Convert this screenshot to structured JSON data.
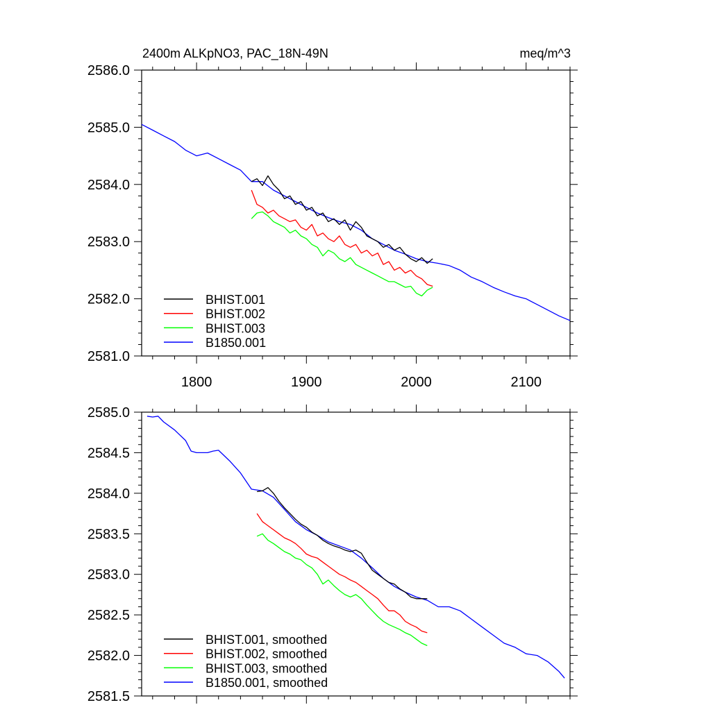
{
  "chart_data": [
    {
      "type": "line",
      "title_left": "2400m ALKpNO3, PAC_18N-49N",
      "title_right": "meq/m^3",
      "xlim": [
        1750,
        2140
      ],
      "ylim": [
        2581.0,
        2586.0
      ],
      "x_ticks": [
        1800,
        1900,
        2000,
        2100
      ],
      "x_tick_labels": [
        "1800",
        "1900",
        "2000",
        "2100"
      ],
      "y_ticks": [
        2581.0,
        2582.0,
        2583.0,
        2584.0,
        2585.0,
        2586.0
      ],
      "y_tick_labels": [
        "2581.0",
        "2582.0",
        "2583.0",
        "2584.0",
        "2585.0",
        "2586.0"
      ],
      "legend_position": "bottom-left",
      "series": [
        {
          "name": "BHIST.001",
          "color": "#000000",
          "x": [
            1850,
            1855,
            1860,
            1865,
            1870,
            1875,
            1880,
            1885,
            1890,
            1895,
            1900,
            1905,
            1910,
            1915,
            1920,
            1925,
            1930,
            1935,
            1940,
            1945,
            1950,
            1955,
            1960,
            1965,
            1970,
            1975,
            1980,
            1985,
            1990,
            1995,
            2000,
            2005,
            2010,
            2015
          ],
          "y": [
            2584.05,
            2584.1,
            2583.98,
            2584.15,
            2584.0,
            2583.9,
            2583.75,
            2583.8,
            2583.65,
            2583.7,
            2583.55,
            2583.6,
            2583.45,
            2583.5,
            2583.35,
            2583.4,
            2583.3,
            2583.38,
            2583.2,
            2583.35,
            2583.25,
            2583.1,
            2583.05,
            2583.0,
            2582.9,
            2582.95,
            2582.85,
            2582.9,
            2582.78,
            2582.7,
            2582.65,
            2582.72,
            2582.62,
            2582.7
          ]
        },
        {
          "name": "BHIST.002",
          "color": "#ff0000",
          "x": [
            1850,
            1855,
            1860,
            1865,
            1870,
            1875,
            1880,
            1885,
            1890,
            1895,
            1900,
            1905,
            1910,
            1915,
            1920,
            1925,
            1930,
            1935,
            1940,
            1945,
            1950,
            1955,
            1960,
            1965,
            1970,
            1975,
            1980,
            1985,
            1990,
            1995,
            2000,
            2005,
            2010,
            2015
          ],
          "y": [
            2583.9,
            2583.65,
            2583.6,
            2583.5,
            2583.55,
            2583.45,
            2583.4,
            2583.35,
            2583.38,
            2583.25,
            2583.2,
            2583.3,
            2583.1,
            2583.15,
            2583.05,
            2583.0,
            2583.1,
            2582.95,
            2582.9,
            2582.95,
            2582.8,
            2582.85,
            2582.75,
            2582.8,
            2582.6,
            2582.65,
            2582.5,
            2582.55,
            2582.45,
            2582.5,
            2582.4,
            2582.35,
            2582.25,
            2582.22
          ]
        },
        {
          "name": "BHIST.003",
          "color": "#00ff00",
          "x": [
            1850,
            1855,
            1860,
            1865,
            1870,
            1875,
            1880,
            1885,
            1890,
            1895,
            1900,
            1905,
            1910,
            1915,
            1920,
            1925,
            1930,
            1935,
            1940,
            1945,
            1950,
            1955,
            1960,
            1965,
            1970,
            1975,
            1980,
            1985,
            1990,
            1995,
            2000,
            2005,
            2010,
            2015
          ],
          "y": [
            2583.4,
            2583.5,
            2583.52,
            2583.45,
            2583.35,
            2583.3,
            2583.25,
            2583.15,
            2583.2,
            2583.1,
            2583.05,
            2582.95,
            2582.9,
            2582.75,
            2582.85,
            2582.8,
            2582.7,
            2582.65,
            2582.72,
            2582.6,
            2582.55,
            2582.5,
            2582.45,
            2582.4,
            2582.35,
            2582.3,
            2582.3,
            2582.25,
            2582.2,
            2582.22,
            2582.1,
            2582.05,
            2582.15,
            2582.2
          ]
        },
        {
          "name": "B1850.001",
          "color": "#0000ff",
          "x": [
            1750,
            1760,
            1770,
            1780,
            1790,
            1800,
            1810,
            1820,
            1830,
            1840,
            1850,
            1860,
            1870,
            1880,
            1890,
            1900,
            1910,
            1920,
            1930,
            1940,
            1950,
            1960,
            1970,
            1980,
            1990,
            2000,
            2010,
            2020,
            2030,
            2040,
            2050,
            2060,
            2070,
            2080,
            2090,
            2100,
            2110,
            2120,
            2130,
            2140
          ],
          "y": [
            2585.05,
            2584.95,
            2584.85,
            2584.75,
            2584.6,
            2584.5,
            2584.55,
            2584.45,
            2584.35,
            2584.25,
            2584.05,
            2584.05,
            2583.9,
            2583.8,
            2583.7,
            2583.6,
            2583.5,
            2583.42,
            2583.35,
            2583.3,
            2583.2,
            2583.05,
            2582.95,
            2582.85,
            2582.78,
            2582.7,
            2582.65,
            2582.62,
            2582.58,
            2582.5,
            2582.38,
            2582.3,
            2582.2,
            2582.12,
            2582.05,
            2582.0,
            2581.9,
            2581.8,
            2581.7,
            2581.62
          ]
        }
      ]
    },
    {
      "type": "line",
      "xlim": [
        1750,
        2140
      ],
      "ylim": [
        2581.5,
        2585.0
      ],
      "x_ticks": [
        1800,
        1900,
        2000,
        2100
      ],
      "y_ticks": [
        2581.5,
        2582.0,
        2582.5,
        2583.0,
        2583.5,
        2584.0,
        2584.5,
        2585.0
      ],
      "y_tick_labels": [
        "2581.5",
        "2582.0",
        "2582.5",
        "2583.0",
        "2583.5",
        "2584.0",
        "2584.5",
        "2585.0"
      ],
      "legend_position": "bottom-left",
      "series": [
        {
          "name": "BHIST.001, smoothed",
          "color": "#000000",
          "x": [
            1855,
            1860,
            1865,
            1870,
            1875,
            1880,
            1885,
            1890,
            1895,
            1900,
            1905,
            1910,
            1915,
            1920,
            1925,
            1930,
            1935,
            1940,
            1945,
            1950,
            1955,
            1960,
            1965,
            1970,
            1975,
            1980,
            1985,
            1990,
            1995,
            2000,
            2005,
            2010
          ],
          "y": [
            2584.02,
            2584.03,
            2584.07,
            2584.0,
            2583.9,
            2583.82,
            2583.75,
            2583.68,
            2583.62,
            2583.58,
            2583.52,
            2583.48,
            2583.42,
            2583.38,
            2583.35,
            2583.33,
            2583.3,
            2583.28,
            2583.3,
            2583.26,
            2583.15,
            2583.05,
            2583.0,
            2582.95,
            2582.9,
            2582.88,
            2582.82,
            2582.78,
            2582.72,
            2582.7,
            2582.7,
            2582.7
          ]
        },
        {
          "name": "BHIST.002, smoothed",
          "color": "#ff0000",
          "x": [
            1855,
            1860,
            1865,
            1870,
            1875,
            1880,
            1885,
            1890,
            1895,
            1900,
            1905,
            1910,
            1915,
            1920,
            1925,
            1930,
            1935,
            1940,
            1945,
            1950,
            1955,
            1960,
            1965,
            1970,
            1975,
            1980,
            1985,
            1990,
            1995,
            2000,
            2005,
            2010
          ],
          "y": [
            2583.75,
            2583.65,
            2583.6,
            2583.55,
            2583.5,
            2583.45,
            2583.42,
            2583.38,
            2583.32,
            2583.25,
            2583.22,
            2583.2,
            2583.15,
            2583.1,
            2583.05,
            2583.0,
            2582.97,
            2582.93,
            2582.9,
            2582.85,
            2582.8,
            2582.75,
            2582.7,
            2582.62,
            2582.55,
            2582.55,
            2582.5,
            2582.42,
            2582.38,
            2582.35,
            2582.3,
            2582.28
          ]
        },
        {
          "name": "BHIST.003, smoothed",
          "color": "#00ff00",
          "x": [
            1855,
            1860,
            1865,
            1870,
            1875,
            1880,
            1885,
            1890,
            1895,
            1900,
            1905,
            1910,
            1915,
            1920,
            1925,
            1930,
            1935,
            1940,
            1945,
            1950,
            1955,
            1960,
            1965,
            1970,
            1975,
            1980,
            1985,
            1990,
            1995,
            2000,
            2005,
            2010
          ],
          "y": [
            2583.47,
            2583.5,
            2583.42,
            2583.38,
            2583.33,
            2583.28,
            2583.25,
            2583.2,
            2583.18,
            2583.12,
            2583.08,
            2583.0,
            2582.88,
            2582.93,
            2582.86,
            2582.8,
            2582.75,
            2582.72,
            2582.75,
            2582.7,
            2582.62,
            2582.55,
            2582.48,
            2582.42,
            2582.38,
            2582.35,
            2582.32,
            2582.28,
            2582.25,
            2582.2,
            2582.15,
            2582.12
          ]
        },
        {
          "name": "B1850.001, smoothed",
          "color": "#0000ff",
          "x": [
            1755,
            1760,
            1765,
            1770,
            1780,
            1790,
            1795,
            1800,
            1810,
            1815,
            1820,
            1830,
            1840,
            1850,
            1860,
            1870,
            1880,
            1890,
            1900,
            1910,
            1920,
            1930,
            1940,
            1950,
            1960,
            1970,
            1980,
            1990,
            2000,
            2010,
            2020,
            2030,
            2040,
            2050,
            2060,
            2070,
            2080,
            2090,
            2100,
            2110,
            2120,
            2130,
            2135
          ],
          "y": [
            2584.95,
            2584.94,
            2584.95,
            2584.88,
            2584.78,
            2584.65,
            2584.52,
            2584.5,
            2584.5,
            2584.52,
            2584.53,
            2584.4,
            2584.25,
            2584.05,
            2584.03,
            2583.95,
            2583.8,
            2583.65,
            2583.55,
            2583.48,
            2583.4,
            2583.35,
            2583.3,
            2583.2,
            2583.08,
            2582.95,
            2582.85,
            2582.78,
            2582.72,
            2582.68,
            2582.6,
            2582.6,
            2582.55,
            2582.45,
            2582.35,
            2582.25,
            2582.15,
            2582.1,
            2582.02,
            2582.0,
            2581.92,
            2581.8,
            2581.72
          ]
        }
      ]
    }
  ]
}
